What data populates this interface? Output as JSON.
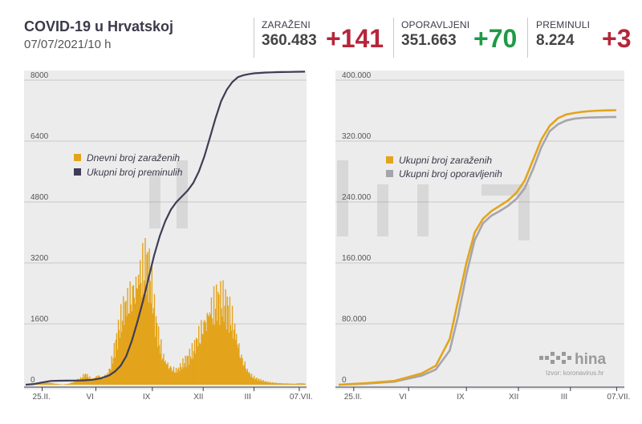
{
  "header": {
    "title": "COVID-19 u Hrvatskoj",
    "date": "07/07/2021/10 h"
  },
  "stats": [
    {
      "label": "ZARAŽENI",
      "value": "360.483",
      "delta": "+141",
      "color": "#b5263a"
    },
    {
      "label": "OPORAVLJENI",
      "value": "351.663",
      "delta": "+70",
      "color": "#1e9a46"
    },
    {
      "label": "PREMINULI",
      "value": "8.224",
      "delta": "+3",
      "color": "#b5263a"
    }
  ],
  "watermark": {
    "logo_text": "hina",
    "source": "Izvor: koronavirus.hr"
  },
  "colors": {
    "orange": "#e3a41c",
    "dark": "#3f3d56",
    "gray": "#a5a5ab",
    "panel": "#ececec"
  },
  "chart_data": [
    {
      "type": "bar",
      "ylim": [
        0,
        8000
      ],
      "yticks": [
        "8000",
        "6400",
        "4800",
        "3200",
        "1600",
        "0"
      ],
      "xticks": [
        "25.II.",
        "VI",
        "IX",
        "XII",
        "III",
        "07.VII."
      ],
      "legend": [
        "Dnevni broj zaraženih",
        "Ukupni broj preminulih"
      ],
      "series": [
        {
          "name": "Dnevni broj zaraženih",
          "type": "bar",
          "color": "#e3a41c",
          "x": [
            0,
            30,
            60,
            90,
            100,
            110,
            120,
            130,
            140,
            150,
            160,
            170,
            180,
            195,
            205,
            215,
            225,
            232,
            238,
            245,
            252,
            258,
            265,
            272,
            282,
            295,
            310,
            330,
            350,
            365,
            380,
            395,
            405,
            415,
            425,
            430,
            436,
            440,
            445,
            450,
            455,
            460,
            470,
            480,
            490,
            500,
            520,
            540,
            560,
            580,
            600,
            620,
            640,
            660,
            680,
            700,
            720,
            735,
            745,
            755,
            765,
            775,
            785,
            792,
            800,
            808,
            815,
            825,
            840,
            860,
            880,
            900,
            920,
            940,
            960,
            980,
            1000
          ],
          "values": [
            0,
            50,
            80,
            60,
            40,
            30,
            20,
            10,
            20,
            30,
            60,
            100,
            150,
            200,
            300,
            350,
            250,
            220,
            200,
            250,
            300,
            350,
            280,
            250,
            300,
            400,
            900,
            1800,
            2600,
            3000,
            3400,
            3600,
            3900,
            4000,
            4100,
            4200,
            4000,
            3800,
            3600,
            3200,
            2800,
            2400,
            1800,
            1400,
            1000,
            800,
            600,
            500,
            700,
            900,
            1200,
            1800,
            2300,
            2700,
            2900,
            2800,
            2600,
            2300,
            2000,
            1600,
            1200,
            900,
            700,
            500,
            400,
            300,
            250,
            200,
            150,
            100,
            80,
            60,
            50,
            40,
            30,
            50,
            40
          ]
        },
        {
          "name": "Ukupni broj preminulih",
          "type": "line",
          "color": "#3f3d56",
          "x": [
            0,
            30,
            60,
            90,
            120,
            150,
            180,
            210,
            240,
            270,
            300,
            320,
            340,
            360,
            380,
            400,
            420,
            440,
            460,
            480,
            500,
            520,
            540,
            560,
            580,
            600,
            620,
            640,
            660,
            680,
            700,
            720,
            740,
            760,
            780,
            800,
            820,
            840,
            860,
            880,
            900,
            920,
            940,
            960,
            980,
            1000
          ],
          "values": [
            0,
            20,
            60,
            100,
            105,
            108,
            110,
            115,
            130,
            170,
            250,
            350,
            500,
            750,
            1150,
            1650,
            2200,
            2800,
            3400,
            3900,
            4300,
            4600,
            4800,
            4950,
            5100,
            5300,
            5600,
            6000,
            6500,
            7000,
            7450,
            7750,
            7950,
            8080,
            8130,
            8160,
            8180,
            8190,
            8200,
            8205,
            8210,
            8212,
            8215,
            8218,
            8220,
            8224
          ]
        }
      ]
    },
    {
      "type": "line",
      "ylim": [
        0,
        400000
      ],
      "yticks": [
        "400.000",
        "320.000",
        "240.000",
        "160.000",
        "80.000",
        "0"
      ],
      "xticks": [
        "25.II.",
        "VI",
        "IX",
        "XII",
        "III",
        "07.VII."
      ],
      "legend": [
        "Ukupni broj zaraženih",
        "Ukupni broj oporavljenih"
      ],
      "series": [
        {
          "name": "Ukupni broj zaraženih",
          "type": "line",
          "color": "#e3a41c",
          "x": [
            0,
            100,
            200,
            300,
            350,
            400,
            430,
            460,
            490,
            520,
            550,
            580,
            610,
            640,
            670,
            700,
            730,
            760,
            790,
            820,
            850,
            880,
            910,
            940,
            970,
            1000
          ],
          "values": [
            0,
            2000,
            5000,
            15000,
            25000,
            60000,
            110000,
            160000,
            200000,
            218000,
            228000,
            235000,
            242000,
            252000,
            268000,
            295000,
            322000,
            340000,
            350000,
            355000,
            357000,
            358500,
            359500,
            360000,
            360300,
            360483
          ]
        },
        {
          "name": "Ukupni broj oporavljenih",
          "type": "line",
          "color": "#a5a5ab",
          "x": [
            0,
            100,
            200,
            300,
            350,
            400,
            430,
            460,
            490,
            520,
            550,
            580,
            610,
            640,
            670,
            700,
            730,
            760,
            790,
            820,
            850,
            880,
            910,
            940,
            970,
            1000
          ],
          "values": [
            0,
            1500,
            4000,
            12000,
            20000,
            45000,
            90000,
            145000,
            190000,
            212000,
            222000,
            228000,
            235000,
            244000,
            258000,
            283000,
            312000,
            333000,
            342000,
            347000,
            349500,
            350500,
            351000,
            351300,
            351500,
            351663
          ]
        }
      ]
    }
  ]
}
